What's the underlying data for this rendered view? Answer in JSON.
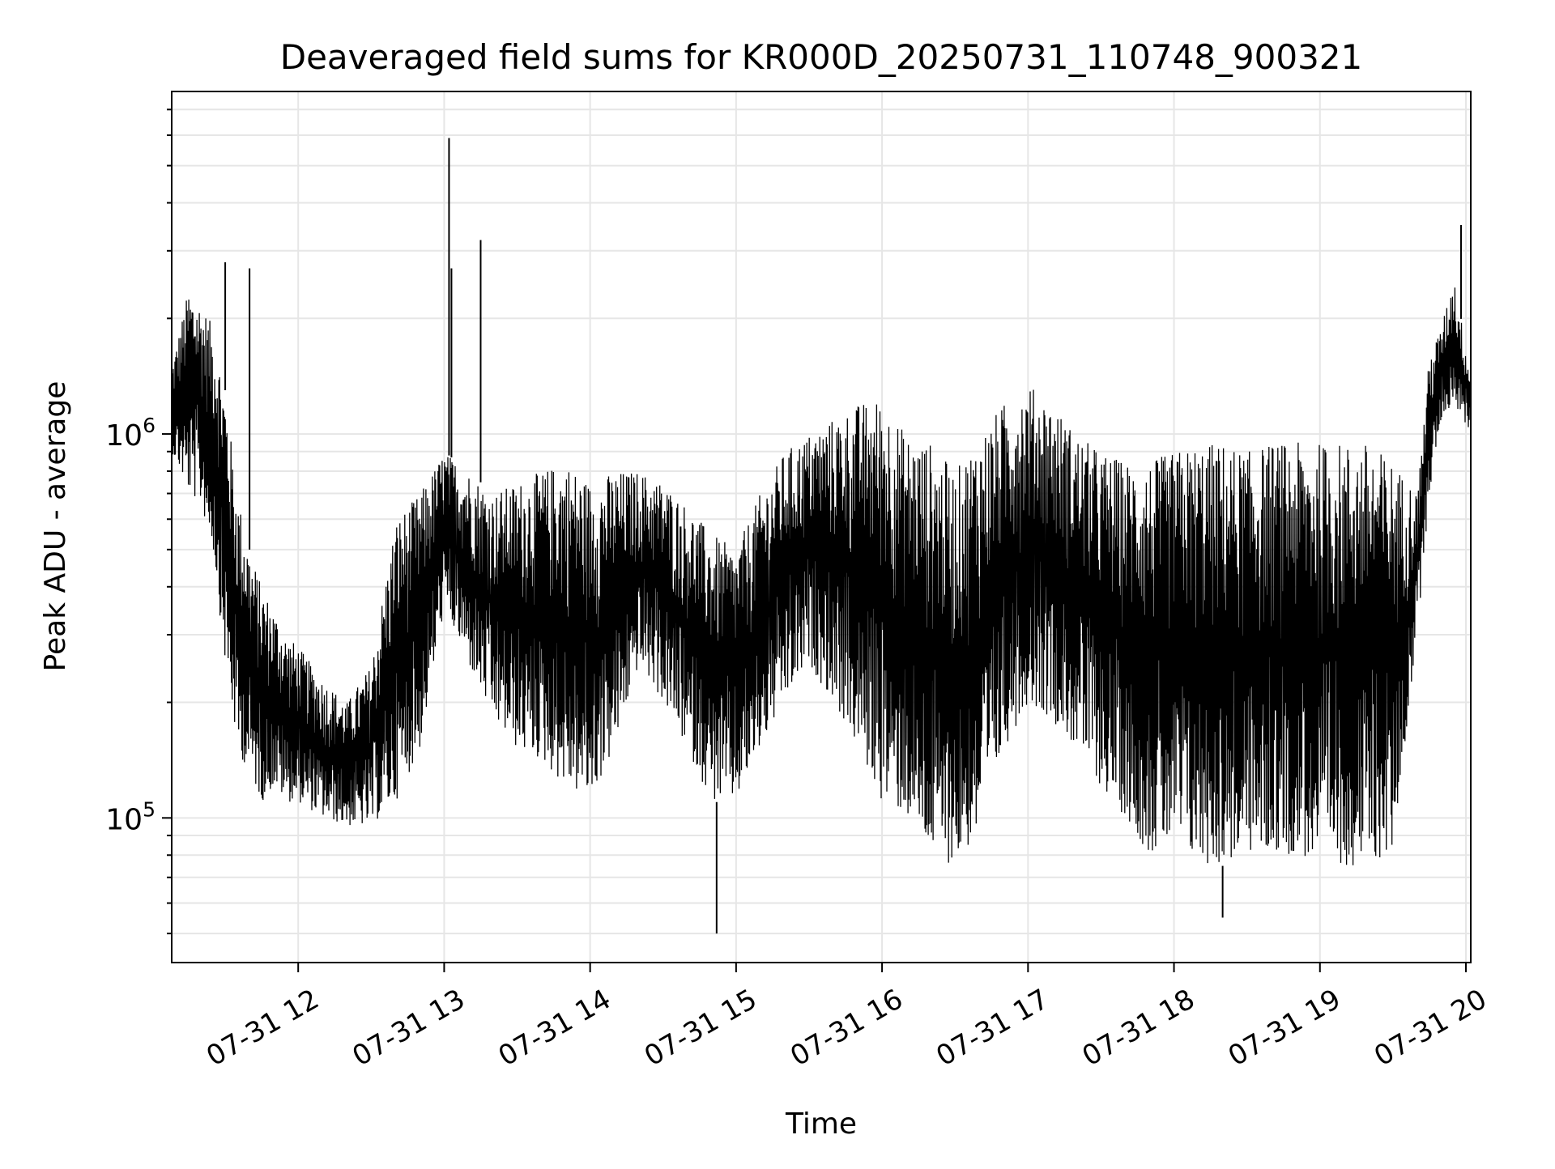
{
  "chart_data": {
    "type": "line",
    "title": "Deaveraged field sums for KR000D_20250731_110748_900321",
    "xlabel": "Time",
    "ylabel": "Peak ADU - average",
    "y_scale": "log",
    "ylim": [
      42000,
      7800000
    ],
    "xlim": [
      "2025-07-31 11:08",
      "2025-07-31 20:02"
    ],
    "grid": true,
    "line_color": "#000000",
    "grid_color": "#e6e6e6",
    "x_ticks": [
      {
        "t": "2025-07-31 12:00",
        "label": "07-31 12"
      },
      {
        "t": "2025-07-31 13:00",
        "label": "07-31 13"
      },
      {
        "t": "2025-07-31 14:00",
        "label": "07-31 14"
      },
      {
        "t": "2025-07-31 15:00",
        "label": "07-31 15"
      },
      {
        "t": "2025-07-31 16:00",
        "label": "07-31 16"
      },
      {
        "t": "2025-07-31 17:00",
        "label": "07-31 17"
      },
      {
        "t": "2025-07-31 18:00",
        "label": "07-31 18"
      },
      {
        "t": "2025-07-31 19:00",
        "label": "07-31 19"
      },
      {
        "t": "2025-07-31 20:00",
        "label": "07-31 20"
      }
    ],
    "y_major_ticks": [
      {
        "value": 100000,
        "base": "10",
        "exp": "5"
      },
      {
        "value": 1000000,
        "base": "10",
        "exp": "6"
      }
    ],
    "envelope_note": "Dense noisy series; values given as low/high envelope per time sample.",
    "series": [
      {
        "name": "",
        "x": [
          "2025-07-31 11:08",
          "2025-07-31 11:15",
          "2025-07-31 11:20",
          "2025-07-31 11:25",
          "2025-07-31 11:30",
          "2025-07-31 11:35",
          "2025-07-31 11:40",
          "2025-07-31 11:45",
          "2025-07-31 11:50",
          "2025-07-31 11:55",
          "2025-07-31 12:00",
          "2025-07-31 12:10",
          "2025-07-31 12:20",
          "2025-07-31 12:30",
          "2025-07-31 12:40",
          "2025-07-31 12:50",
          "2025-07-31 13:00",
          "2025-07-31 13:10",
          "2025-07-31 13:20",
          "2025-07-31 13:30",
          "2025-07-31 13:40",
          "2025-07-31 13:50",
          "2025-07-31 14:00",
          "2025-07-31 14:10",
          "2025-07-31 14:20",
          "2025-07-31 14:30",
          "2025-07-31 14:40",
          "2025-07-31 14:50",
          "2025-07-31 15:00",
          "2025-07-31 15:10",
          "2025-07-31 15:20",
          "2025-07-31 15:30",
          "2025-07-31 15:40",
          "2025-07-31 15:50",
          "2025-07-31 16:00",
          "2025-07-31 16:10",
          "2025-07-31 16:20",
          "2025-07-31 16:30",
          "2025-07-31 16:40",
          "2025-07-31 16:50",
          "2025-07-31 17:00",
          "2025-07-31 17:10",
          "2025-07-31 17:20",
          "2025-07-31 17:30",
          "2025-07-31 17:40",
          "2025-07-31 17:50",
          "2025-07-31 18:00",
          "2025-07-31 18:10",
          "2025-07-31 18:20",
          "2025-07-31 18:30",
          "2025-07-31 18:40",
          "2025-07-31 18:50",
          "2025-07-31 19:00",
          "2025-07-31 19:10",
          "2025-07-31 19:20",
          "2025-07-31 19:30",
          "2025-07-31 19:40",
          "2025-07-31 19:45",
          "2025-07-31 19:50",
          "2025-07-31 19:55",
          "2025-07-31 20:02"
        ],
        "low": [
          900000,
          700000,
          650000,
          500000,
          250000,
          150000,
          130000,
          110000,
          120000,
          110000,
          110000,
          100000,
          95000,
          95000,
          110000,
          150000,
          350000,
          250000,
          180000,
          150000,
          140000,
          120000,
          110000,
          150000,
          250000,
          200000,
          150000,
          110000,
          110000,
          150000,
          200000,
          250000,
          200000,
          150000,
          110000,
          100000,
          80000,
          75000,
          90000,
          150000,
          200000,
          180000,
          150000,
          120000,
          100000,
          80000,
          85000,
          75000,
          75000,
          80000,
          80000,
          80000,
          75000,
          75000,
          75000,
          80000,
          300000,
          700000,
          1100000,
          1200000,
          1000000
        ],
        "high": [
          1500000,
          2400000,
          2200000,
          1900000,
          1300000,
          700000,
          500000,
          400000,
          350000,
          300000,
          280000,
          230000,
          200000,
          250000,
          600000,
          700000,
          900000,
          800000,
          700000,
          750000,
          800000,
          850000,
          750000,
          800000,
          800000,
          750000,
          650000,
          550000,
          500000,
          700000,
          900000,
          1000000,
          1100000,
          1200000,
          1250000,
          1000000,
          950000,
          800000,
          1000000,
          1200000,
          1350000,
          1200000,
          1000000,
          900000,
          850000,
          850000,
          900000,
          950000,
          950000,
          900000,
          950000,
          950000,
          950000,
          950000,
          950000,
          850000,
          700000,
          1600000,
          1900000,
          2600000,
          1400000
        ]
      }
    ],
    "annotations": [
      {
        "t": "2025-07-31 13:02",
        "value": 5900000,
        "kind": "spike"
      },
      {
        "t": "2025-07-31 13:03",
        "value": 2700000,
        "kind": "spike"
      },
      {
        "t": "2025-07-31 13:15",
        "value": 3200000,
        "kind": "spike"
      },
      {
        "t": "2025-07-31 11:40",
        "value": 2700000,
        "kind": "spike"
      },
      {
        "t": "2025-07-31 11:30",
        "value": 2800000,
        "kind": "spike"
      },
      {
        "t": "2025-07-31 14:52",
        "value": 50000,
        "kind": "dip"
      },
      {
        "t": "2025-07-31 18:20",
        "value": 55000,
        "kind": "dip"
      },
      {
        "t": "2025-07-31 19:58",
        "value": 3500000,
        "kind": "spike"
      }
    ]
  }
}
